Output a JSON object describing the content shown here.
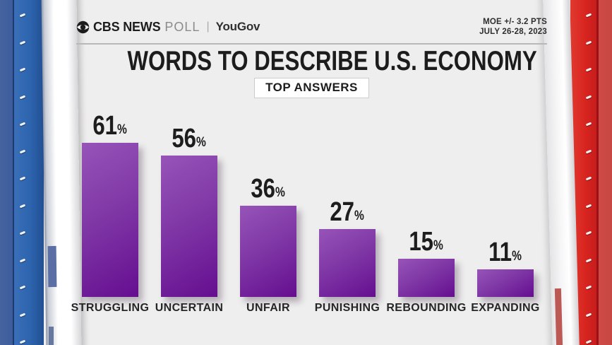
{
  "header": {
    "logo": {
      "cbs": "CBS NEWS",
      "poll": "POLL",
      "separator": "|",
      "partner": "YouGov"
    },
    "moe_line1": "MOE +/- 3.2 PTS",
    "moe_line2": "JULY 26-28, 2023"
  },
  "title": "WORDS TO DESCRIBE U.S. ECONOMY",
  "badge": "TOP ANSWERS",
  "chart_data": {
    "type": "bar",
    "title": "WORDS TO DESCRIBE U.S. ECONOMY",
    "subtitle": "TOP ANSWERS",
    "categories": [
      "STRUGGLING",
      "UNCERTAIN",
      "UNFAIR",
      "PUNISHING",
      "REBOUNDING",
      "EXPANDING"
    ],
    "values": [
      61,
      56,
      36,
      27,
      15,
      11
    ],
    "unit": "%",
    "xlabel": "",
    "ylabel": "",
    "ylim": [
      0,
      65
    ],
    "grid": false,
    "legend": false,
    "value_labels_position": "above-bars",
    "bar_color_top": "#9654b8",
    "bar_color_bottom": "#650e90",
    "value_label_color": "#1d1d1d"
  },
  "colors": {
    "background": "#efeeee",
    "left_band_blue": "#2d64ae",
    "right_band_red": "#d8241f",
    "title_text": "#1c1c1c",
    "divider": "#b8b8b8"
  }
}
